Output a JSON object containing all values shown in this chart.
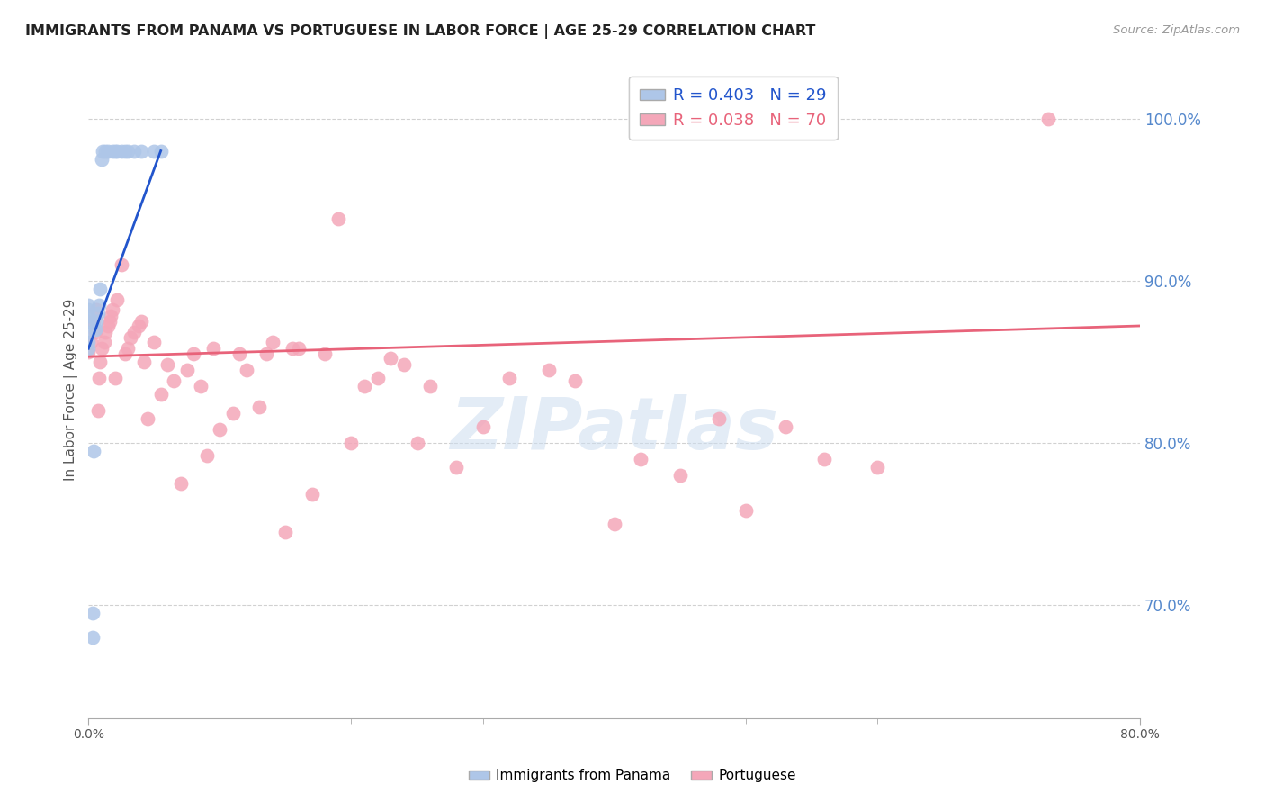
{
  "title": "IMMIGRANTS FROM PANAMA VS PORTUGUESE IN LABOR FORCE | AGE 25-29 CORRELATION CHART",
  "source": "Source: ZipAtlas.com",
  "ylabel": "In Labor Force | Age 25-29",
  "x_min": 0.0,
  "x_max": 0.8,
  "y_min": 0.63,
  "y_max": 1.035,
  "y_ticks": [
    0.7,
    0.8,
    0.9,
    1.0
  ],
  "y_tick_labels": [
    "70.0%",
    "80.0%",
    "90.0%",
    "100.0%"
  ],
  "panama_color": "#aec6e8",
  "portuguese_color": "#f4a7b9",
  "panama_line_color": "#2255cc",
  "portuguese_line_color": "#e8637a",
  "watermark": "ZIPatlas",
  "panama_x": [
    0.0,
    0.0,
    0.0,
    0.0,
    0.0,
    0.0,
    0.0,
    0.003,
    0.003,
    0.004,
    0.005,
    0.006,
    0.007,
    0.008,
    0.009,
    0.01,
    0.011,
    0.013,
    0.015,
    0.018,
    0.02,
    0.022,
    0.025,
    0.028,
    0.03,
    0.035,
    0.04,
    0.05,
    0.055
  ],
  "panama_y": [
    0.858,
    0.862,
    0.868,
    0.875,
    0.878,
    0.882,
    0.885,
    0.68,
    0.695,
    0.795,
    0.87,
    0.875,
    0.88,
    0.885,
    0.895,
    0.975,
    0.98,
    0.98,
    0.98,
    0.98,
    0.98,
    0.98,
    0.98,
    0.98,
    0.98,
    0.98,
    0.98,
    0.98,
    0.98
  ],
  "portuguese_x": [
    0.0,
    0.002,
    0.004,
    0.005,
    0.006,
    0.007,
    0.008,
    0.009,
    0.01,
    0.012,
    0.013,
    0.015,
    0.016,
    0.017,
    0.018,
    0.02,
    0.022,
    0.025,
    0.028,
    0.03,
    0.032,
    0.035,
    0.038,
    0.04,
    0.042,
    0.045,
    0.05,
    0.055,
    0.06,
    0.065,
    0.07,
    0.075,
    0.08,
    0.085,
    0.09,
    0.095,
    0.1,
    0.11,
    0.115,
    0.12,
    0.13,
    0.135,
    0.14,
    0.15,
    0.155,
    0.16,
    0.17,
    0.18,
    0.19,
    0.2,
    0.21,
    0.22,
    0.23,
    0.24,
    0.25,
    0.26,
    0.28,
    0.3,
    0.32,
    0.35,
    0.37,
    0.4,
    0.42,
    0.45,
    0.48,
    0.5,
    0.53,
    0.56,
    0.6,
    0.73
  ],
  "portuguese_y": [
    0.856,
    0.862,
    0.875,
    0.868,
    0.882,
    0.82,
    0.84,
    0.85,
    0.858,
    0.862,
    0.868,
    0.872,
    0.875,
    0.878,
    0.882,
    0.84,
    0.888,
    0.91,
    0.855,
    0.858,
    0.865,
    0.868,
    0.872,
    0.875,
    0.85,
    0.815,
    0.862,
    0.83,
    0.848,
    0.838,
    0.775,
    0.845,
    0.855,
    0.835,
    0.792,
    0.858,
    0.808,
    0.818,
    0.855,
    0.845,
    0.822,
    0.855,
    0.862,
    0.745,
    0.858,
    0.858,
    0.768,
    0.855,
    0.938,
    0.8,
    0.835,
    0.84,
    0.852,
    0.848,
    0.8,
    0.835,
    0.785,
    0.81,
    0.84,
    0.845,
    0.838,
    0.75,
    0.79,
    0.78,
    0.815,
    0.758,
    0.81,
    0.79,
    0.785,
    1.0
  ]
}
